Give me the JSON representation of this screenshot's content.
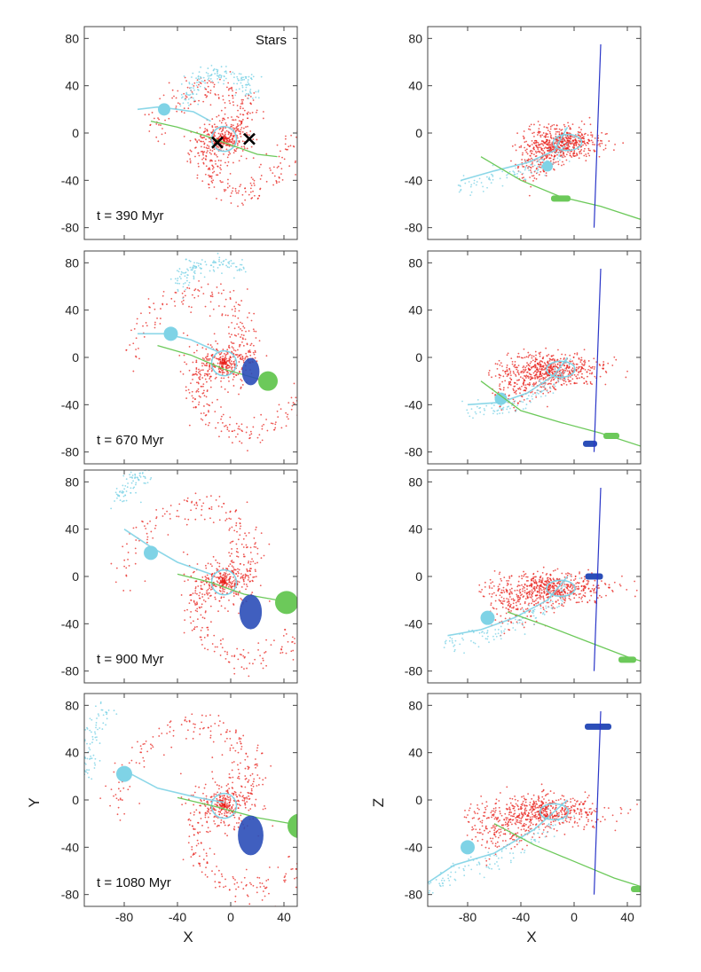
{
  "figure": {
    "stars_label": "Stars",
    "xlabel": "X",
    "ylabel_left": "Y",
    "ylabel_right": "Z",
    "time_labels": [
      "t = 390 Myr",
      "t = 670 Myr",
      "t = 900 Myr",
      "t = 1080 Myr"
    ]
  },
  "colors": {
    "host": "#e8231e",
    "companion": "#7fd3e6",
    "satellite_green": "#6cc95a",
    "satellite_blue": "#2b4eb8",
    "los_line": "#2a36c8",
    "marker": "#000000"
  },
  "chart_data": {
    "type": "scatter",
    "description_units": "kpc",
    "x_ticks": [
      -80,
      -40,
      0,
      40
    ],
    "y_ticks": [
      -80,
      -40,
      0,
      40,
      80
    ],
    "xlim": [
      -110,
      50
    ],
    "ylim": [
      -90,
      90
    ],
    "panels": [
      {
        "row": 0,
        "plane": "XY",
        "time": "t = 390 Myr",
        "show_stars_label": true,
        "host_disk": {
          "center": [
            -5,
            -5
          ],
          "radius": 28,
          "spiral_arm_extent": 55
        },
        "companion_track": [
          [
            -70,
            20
          ],
          [
            -55,
            22
          ],
          [
            -40,
            20
          ],
          [
            -28,
            18
          ],
          [
            -15,
            10
          ]
        ],
        "companion_body": {
          "center": [
            -50,
            20
          ],
          "radius": 5
        },
        "companion_arm": [
          [
            -35,
            25
          ],
          [
            -25,
            45
          ],
          [
            -10,
            52
          ],
          [
            10,
            45
          ],
          [
            15,
            30
          ]
        ],
        "green_track": [
          [
            -60,
            10
          ],
          [
            -40,
            5
          ],
          [
            -20,
            -2
          ],
          [
            0,
            -10
          ],
          [
            20,
            -18
          ],
          [
            35,
            -20
          ]
        ],
        "x_markers": [
          [
            -10,
            -8
          ],
          [
            14,
            -5
          ]
        ]
      },
      {
        "row": 0,
        "plane": "XZ",
        "time": "t = 390 Myr",
        "los_line": [
          [
            15,
            -80
          ],
          [
            20,
            75
          ]
        ],
        "host_disk": {
          "center": [
            -5,
            -8
          ],
          "half_length": 25,
          "thickness": 28
        },
        "companion_track": [
          [
            -85,
            -40
          ],
          [
            -60,
            -32
          ],
          [
            -35,
            -25
          ],
          [
            -15,
            -15
          ],
          [
            -5,
            5
          ]
        ],
        "companion_body": {
          "center": [
            -20,
            -28
          ],
          "radius": 4
        },
        "green_track": [
          [
            -70,
            -20
          ],
          [
            -40,
            -40
          ],
          [
            -10,
            -54
          ],
          [
            20,
            -62
          ],
          [
            50,
            -73
          ]
        ],
        "green_clump": {
          "center": [
            -10,
            -55
          ],
          "width": 22
        },
        "blue_clump": null
      },
      {
        "row": 1,
        "plane": "XY",
        "time": "t = 670 Myr",
        "host_disk": {
          "center": [
            -5,
            -5
          ],
          "radius": 30,
          "spiral_arm_extent": 80
        },
        "companion_track": [
          [
            -70,
            20
          ],
          [
            -50,
            20
          ],
          [
            -30,
            15
          ],
          [
            -10,
            5
          ]
        ],
        "companion_body": {
          "center": [
            -45,
            20
          ],
          "radius": 6
        },
        "companion_arm": [
          [
            -40,
            55
          ],
          [
            -30,
            75
          ],
          [
            -10,
            80
          ],
          [
            10,
            75
          ]
        ],
        "green_track": [
          [
            -55,
            10
          ],
          [
            -30,
            2
          ],
          [
            -5,
            -10
          ],
          [
            20,
            -18
          ],
          [
            35,
            -20
          ]
        ],
        "green_body": {
          "center": [
            28,
            -20
          ],
          "radius": 9
        },
        "blue_body": {
          "center": [
            15,
            -12
          ],
          "radius": 11
        }
      },
      {
        "row": 1,
        "plane": "XZ",
        "time": "t = 670 Myr",
        "los_line": [
          [
            15,
            -80
          ],
          [
            20,
            75
          ]
        ],
        "host_disk": {
          "center": [
            -10,
            -10
          ],
          "half_length": 35,
          "thickness": 30
        },
        "companion_track": [
          [
            -80,
            -40
          ],
          [
            -55,
            -38
          ],
          [
            -35,
            -30
          ],
          [
            -15,
            -15
          ],
          [
            -5,
            0
          ]
        ],
        "companion_body": {
          "center": [
            -55,
            -35
          ],
          "radius": 5
        },
        "green_track": [
          [
            -70,
            -20
          ],
          [
            -40,
            -45
          ],
          [
            -10,
            -55
          ],
          [
            20,
            -64
          ],
          [
            50,
            -75
          ]
        ],
        "green_clump": {
          "center": [
            28,
            -66
          ],
          "width": 18
        },
        "blue_clump": {
          "center": [
            12,
            -73
          ],
          "width": 16
        }
      },
      {
        "row": 2,
        "plane": "XY",
        "time": "t = 900 Myr",
        "host_disk": {
          "center": [
            -5,
            -5
          ],
          "radius": 30,
          "spiral_arm_extent": 90
        },
        "companion_track": [
          [
            -80,
            40
          ],
          [
            -60,
            25
          ],
          [
            -40,
            12
          ],
          [
            -15,
            2
          ]
        ],
        "companion_body": {
          "center": [
            -60,
            20
          ],
          "radius": 6
        },
        "companion_arm": [
          [
            -85,
            60
          ],
          [
            -75,
            80
          ],
          [
            -60,
            90
          ]
        ],
        "green_track": [
          [
            -40,
            2
          ],
          [
            -15,
            -5
          ],
          [
            10,
            -15
          ],
          [
            35,
            -20
          ]
        ],
        "green_body": {
          "center": [
            42,
            -22
          ],
          "radius": 11
        },
        "blue_body": {
          "center": [
            15,
            -30
          ],
          "radius": 14
        }
      },
      {
        "row": 2,
        "plane": "XZ",
        "time": "t = 900 Myr",
        "los_line": [
          [
            15,
            -80
          ],
          [
            20,
            75
          ]
        ],
        "host_disk": {
          "center": [
            -10,
            -10
          ],
          "half_length": 40,
          "thickness": 30
        },
        "companion_track": [
          [
            -95,
            -50
          ],
          [
            -70,
            -45
          ],
          [
            -45,
            -35
          ],
          [
            -20,
            -20
          ],
          [
            -5,
            0
          ]
        ],
        "companion_body": {
          "center": [
            -65,
            -35
          ],
          "radius": 6
        },
        "green_track": [
          [
            -50,
            -30
          ],
          [
            -20,
            -42
          ],
          [
            10,
            -55
          ],
          [
            40,
            -68
          ],
          [
            60,
            -75
          ]
        ],
        "green_clump": {
          "center": [
            40,
            -70
          ],
          "width": 20
        },
        "blue_clump": {
          "center": [
            15,
            0
          ],
          "width": 20
        }
      },
      {
        "row": 3,
        "plane": "XY",
        "time": "t = 1080 Myr",
        "host_disk": {
          "center": [
            -5,
            -5
          ],
          "radius": 32,
          "spiral_arm_extent": 95
        },
        "companion_track": [
          [
            -80,
            25
          ],
          [
            -55,
            10
          ],
          [
            -25,
            2
          ],
          [
            -5,
            -2
          ]
        ],
        "companion_body": {
          "center": [
            -80,
            22
          ],
          "radius": 7
        },
        "companion_arm": [
          [
            -110,
            20
          ],
          [
            -105,
            50
          ],
          [
            -95,
            80
          ]
        ],
        "green_track": [
          [
            -40,
            2
          ],
          [
            -10,
            -6
          ],
          [
            20,
            -15
          ],
          [
            45,
            -20
          ]
        ],
        "green_body": {
          "center": [
            52,
            -22
          ],
          "radius": 12
        },
        "blue_body": {
          "center": [
            15,
            -30
          ],
          "radius": 16
        }
      },
      {
        "row": 3,
        "plane": "XZ",
        "time": "t = 1080 Myr",
        "los_line": [
          [
            15,
            -80
          ],
          [
            20,
            75
          ]
        ],
        "host_disk": {
          "center": [
            -15,
            -10
          ],
          "half_length": 45,
          "thickness": 32
        },
        "companion_track": [
          [
            -110,
            -70
          ],
          [
            -90,
            -55
          ],
          [
            -60,
            -45
          ],
          [
            -30,
            -25
          ],
          [
            -5,
            0
          ]
        ],
        "companion_body": {
          "center": [
            -80,
            -40
          ],
          "radius": 6
        },
        "green_track": [
          [
            -60,
            -20
          ],
          [
            -30,
            -38
          ],
          [
            0,
            -52
          ],
          [
            30,
            -66
          ],
          [
            55,
            -75
          ]
        ],
        "green_clump": {
          "center": [
            50,
            -75
          ],
          "width": 22
        },
        "blue_clump": {
          "center": [
            18,
            62
          ],
          "width": 30
        }
      }
    ]
  }
}
